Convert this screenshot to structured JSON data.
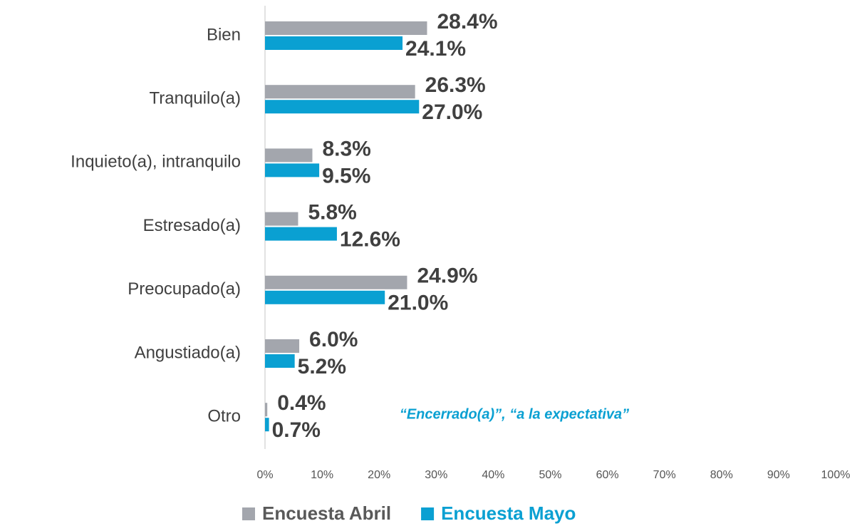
{
  "chart_data": {
    "type": "hbar",
    "categories": [
      "Bien",
      "Tranquilo(a)",
      "Inquieto(a), intranquilo",
      "Estresado(a)",
      "Preocupado(a)",
      "Angustiado(a)",
      "Otro"
    ],
    "series": [
      {
        "name": "Encuesta Abril",
        "color": "#a3a6ad",
        "values": [
          28.4,
          26.3,
          8.3,
          5.8,
          24.9,
          6.0,
          0.4
        ],
        "value_labels": [
          "28.4%",
          "26.3%",
          "8.3%",
          "5.8%",
          "24.9%",
          "6.0%",
          "0.4%"
        ]
      },
      {
        "name": "Encuesta Mayo",
        "color": "#0aa0d2",
        "values": [
          24.1,
          27.0,
          9.5,
          12.6,
          21.0,
          5.2,
          0.7
        ],
        "value_labels": [
          "24.1%",
          "27.0%",
          "9.5%",
          "12.6%",
          "21.0%",
          "5.2%",
          "0.7%"
        ]
      }
    ],
    "xlim": [
      0,
      100
    ],
    "xticks": [
      {
        "value": 0,
        "label": "0%"
      },
      {
        "value": 10,
        "label": "10%"
      },
      {
        "value": 20,
        "label": "20%"
      },
      {
        "value": 30,
        "label": "30%"
      },
      {
        "value": 40,
        "label": "40%"
      },
      {
        "value": 50,
        "label": "50%"
      },
      {
        "value": 60,
        "label": "60%"
      },
      {
        "value": 70,
        "label": "70%"
      },
      {
        "value": 80,
        "label": "80%"
      },
      {
        "value": 90,
        "label": "90%"
      },
      {
        "value": 100,
        "label": "100%"
      }
    ],
    "annotation": "“Encerrado(a)”, “a la expectativa”",
    "legend": "bottom"
  }
}
